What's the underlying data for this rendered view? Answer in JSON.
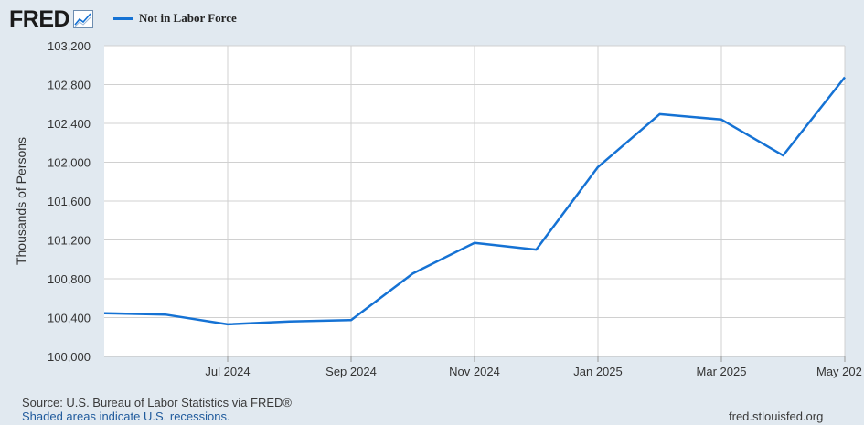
{
  "header": {
    "logo_text": "FRED",
    "logo_icon": "line-chart-icon",
    "legend_label": "Not in Labor Force",
    "series_color": "#1572d4"
  },
  "chart_data": {
    "type": "line",
    "ylabel": "Thousands of Persons",
    "xlabel": "",
    "ylim": [
      100000,
      103200
    ],
    "y_ticks": [
      100000,
      100400,
      100800,
      101200,
      101600,
      102000,
      102400,
      102800,
      103200
    ],
    "y_tick_labels": [
      "100,000",
      "100,400",
      "100,800",
      "101,200",
      "101,600",
      "102,000",
      "102,400",
      "102,800",
      "103,200"
    ],
    "xlim": [
      "2024-05",
      "2025-05"
    ],
    "x_ticks": [
      "2024-07",
      "2024-09",
      "2024-11",
      "2025-01",
      "2025-03",
      "2025-05"
    ],
    "x_tick_labels": [
      "Jul 2024",
      "Sep 2024",
      "Nov 2024",
      "Jan 2025",
      "Mar 2025",
      "May 202"
    ],
    "grid": true,
    "legend": "top-left",
    "series": [
      {
        "name": "Not in Labor Force",
        "color": "#1572d4",
        "x": [
          "2024-05",
          "2024-06",
          "2024-07",
          "2024-08",
          "2024-09",
          "2024-10",
          "2024-11",
          "2024-12",
          "2025-01",
          "2025-02",
          "2025-03",
          "2025-04",
          "2025-05"
        ],
        "values": [
          100445,
          100430,
          100330,
          100360,
          100375,
          100855,
          101170,
          101100,
          101950,
          102495,
          102440,
          102070,
          102875
        ]
      }
    ]
  },
  "footer": {
    "source": "Source: U.S. Bureau of Labor Statistics via FRED®",
    "note": "Shaded areas indicate U.S. recessions.",
    "site": "fred.stlouisfed.org"
  }
}
